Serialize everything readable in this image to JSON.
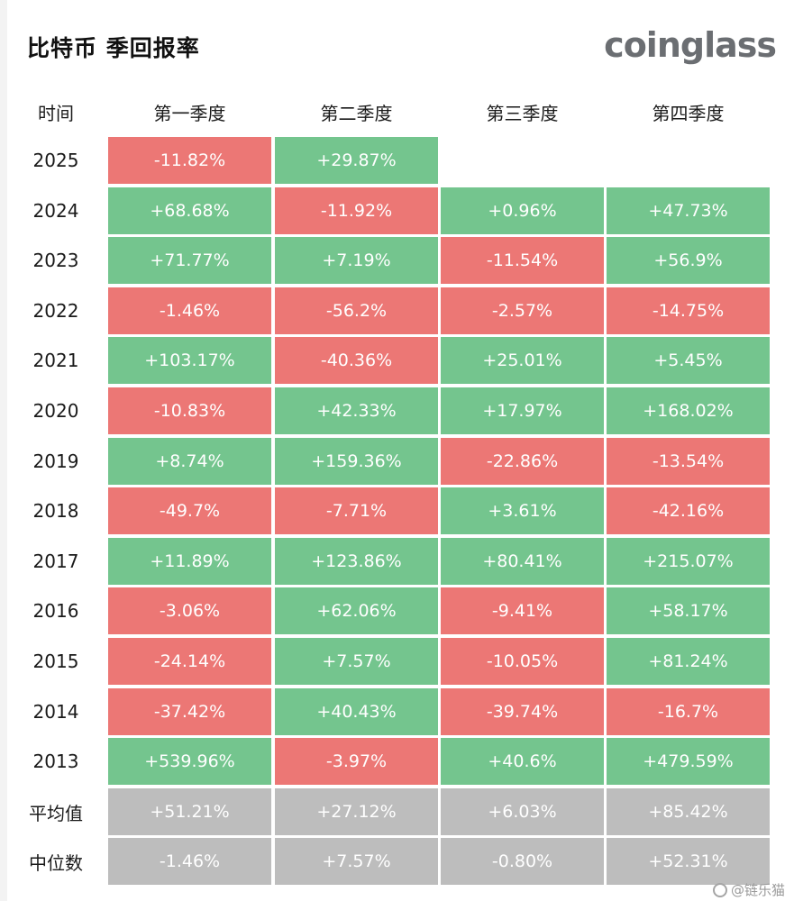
{
  "header": {
    "title": "比特币 季回报率",
    "brand": "coinglass"
  },
  "chart_data": {
    "type": "table",
    "row_header": "时间",
    "columns": [
      "第一季度",
      "第二季度",
      "第三季度",
      "第四季度"
    ],
    "rows": [
      {
        "label": "2025",
        "values": [
          "-11.82%",
          "+29.87%",
          "",
          ""
        ]
      },
      {
        "label": "2024",
        "values": [
          "+68.68%",
          "-11.92%",
          "+0.96%",
          "+47.73%"
        ]
      },
      {
        "label": "2023",
        "values": [
          "+71.77%",
          "+7.19%",
          "-11.54%",
          "+56.9%"
        ]
      },
      {
        "label": "2022",
        "values": [
          "-1.46%",
          "-56.2%",
          "-2.57%",
          "-14.75%"
        ]
      },
      {
        "label": "2021",
        "values": [
          "+103.17%",
          "-40.36%",
          "+25.01%",
          "+5.45%"
        ]
      },
      {
        "label": "2020",
        "values": [
          "-10.83%",
          "+42.33%",
          "+17.97%",
          "+168.02%"
        ]
      },
      {
        "label": "2019",
        "values": [
          "+8.74%",
          "+159.36%",
          "-22.86%",
          "-13.54%"
        ]
      },
      {
        "label": "2018",
        "values": [
          "-49.7%",
          "-7.71%",
          "+3.61%",
          "-42.16%"
        ]
      },
      {
        "label": "2017",
        "values": [
          "+11.89%",
          "+123.86%",
          "+80.41%",
          "+215.07%"
        ]
      },
      {
        "label": "2016",
        "values": [
          "-3.06%",
          "+62.06%",
          "-9.41%",
          "+58.17%"
        ]
      },
      {
        "label": "2015",
        "values": [
          "-24.14%",
          "+7.57%",
          "-10.05%",
          "+81.24%"
        ]
      },
      {
        "label": "2014",
        "values": [
          "-37.42%",
          "+40.43%",
          "-39.74%",
          "-16.7%"
        ]
      },
      {
        "label": "2013",
        "values": [
          "+539.96%",
          "-3.97%",
          "+40.6%",
          "+479.59%"
        ]
      }
    ],
    "summary_rows": [
      {
        "label": "平均值",
        "values": [
          "+51.21%",
          "+27.12%",
          "+6.03%",
          "+85.42%"
        ]
      },
      {
        "label": "中位数",
        "values": [
          "-1.46%",
          "+7.57%",
          "-0.80%",
          "+52.31%"
        ]
      }
    ],
    "colors": {
      "positive": "#74c58e",
      "negative": "#ec7775",
      "summary": "#bdbdbd"
    }
  },
  "watermark": {
    "text": "@链乐猫",
    "icon": "watermark-circle-icon"
  }
}
